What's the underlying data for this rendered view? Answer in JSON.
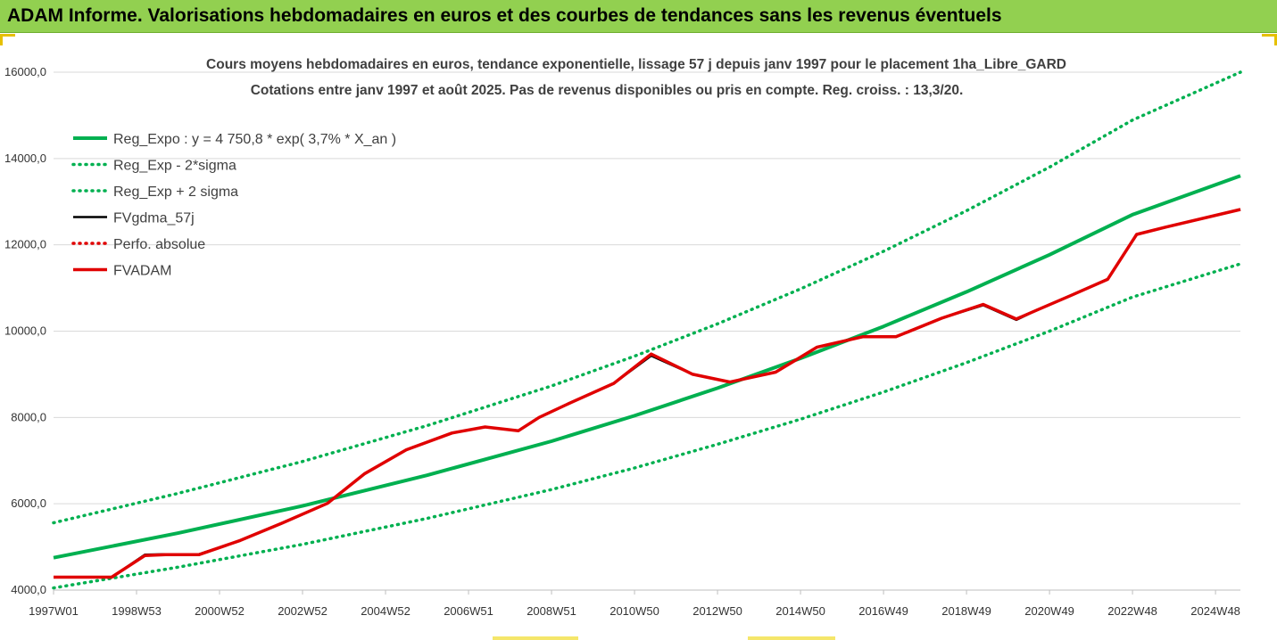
{
  "banner": {
    "title": "ADAM Informe. Valorisations hebdomadaires en euros et des courbes de tendances sans les revenus éventuels"
  },
  "colors": {
    "banner_bg": "#92d050",
    "reg_expo": "#00b050",
    "reg_bands": "#00b050",
    "fvgdma": "#000000",
    "perfo": "#e00000",
    "fvadam": "#e00000"
  },
  "chart_data": {
    "type": "line",
    "title_line1": "Cours moyens hebdomadaires en euros, tendance exponentielle, lissage 57 j depuis janv 1997  pour le placement 1ha_Libre_GARD",
    "title_line2": "Cotations entre janv 1997 et août 2025. Pas de revenus disponibles ou pris en compte. Reg. croiss. : 13,3/20.",
    "x_ticks": [
      "1997W01",
      "1998W53",
      "2000W52",
      "2002W52",
      "2004W52",
      "2006W51",
      "2008W51",
      "2010W50",
      "2012W50",
      "2014W50",
      "2016W49",
      "2018W49",
      "2020W49",
      "2022W48",
      "2024W48"
    ],
    "x_tick_years": [
      1997.0,
      1999.0,
      2001.0,
      2003.0,
      2005.0,
      2007.0,
      2009.0,
      2011.0,
      2013.0,
      2015.0,
      2017.0,
      2019.0,
      2021.0,
      2023.0,
      2025.0
    ],
    "x_range": [
      1997.0,
      2025.6
    ],
    "y_ticks": [
      "4000,0",
      "6000,0",
      "8000,0",
      "10000,0",
      "12000,0",
      "14000,0",
      "16000,0"
    ],
    "y_tick_values": [
      4000,
      6000,
      8000,
      10000,
      12000,
      14000,
      16000
    ],
    "ylim": [
      4000,
      16000
    ],
    "grid": "horizontal",
    "legend_position": "top-left",
    "series": [
      {
        "name": "Reg_Expo : y = 4 750,8 * exp( 3,7% *  X_an )",
        "style": "solid",
        "color": "#00b050",
        "x": [
          1997.0,
          2000.0,
          2003.0,
          2006.0,
          2009.0,
          2011.0,
          2013.0,
          2015.0,
          2017.0,
          2019.0,
          2021.0,
          2023.0,
          2025.6
        ],
        "y": [
          4750,
          5320,
          5950,
          6660,
          7450,
          8040,
          8680,
          9370,
          10110,
          10910,
          11770,
          12700,
          13600
        ]
      },
      {
        "name": "Reg_Exp - 2*sigma",
        "style": "dotted",
        "color": "#00b050",
        "x": [
          1997.0,
          2000.0,
          2003.0,
          2006.0,
          2009.0,
          2011.0,
          2013.0,
          2015.0,
          2017.0,
          2019.0,
          2021.0,
          2023.0,
          2025.6
        ],
        "y": [
          4050,
          4530,
          5060,
          5660,
          6330,
          6830,
          7380,
          7960,
          8590,
          9270,
          10000,
          10790,
          11560
        ]
      },
      {
        "name": "Reg_Exp + 2 sigma",
        "style": "dotted",
        "color": "#00b050",
        "x": [
          1997.0,
          2000.0,
          2003.0,
          2006.0,
          2009.0,
          2011.0,
          2013.0,
          2015.0,
          2017.0,
          2019.0,
          2021.0,
          2023.0,
          2025.6
        ],
        "y": [
          5560,
          6240,
          6980,
          7810,
          8730,
          9420,
          10170,
          10980,
          11850,
          12790,
          13800,
          14890,
          16000
        ]
      },
      {
        "name": "FVgdma_57j",
        "style": "solid",
        "color": "#000000",
        "x": [
          1997.0,
          1998.4,
          1999.2,
          1999.7,
          2000.5,
          2001.5,
          2002.5,
          2003.6,
          2004.5,
          2005.5,
          2006.6,
          2007.4,
          2008.2,
          2008.7,
          2009.5,
          2010.5,
          2011.4,
          2012.4,
          2013.3,
          2014.4,
          2015.4,
          2016.5,
          2017.3,
          2018.4,
          2019.4,
          2020.2,
          2020.7,
          2021.5,
          2022.4,
          2023.1,
          2023.8,
          2025.6
        ],
        "y": [
          4300,
          4300,
          4820,
          4830,
          4830,
          5150,
          5550,
          6010,
          6700,
          7250,
          7640,
          7780,
          7690,
          8000,
          8360,
          8790,
          9430,
          9000,
          8820,
          9050,
          9630,
          9870,
          9870,
          10300,
          10600,
          10260,
          10490,
          10820,
          11200,
          12240,
          12410,
          12820
        ]
      },
      {
        "name": "Perfo. absolue",
        "style": "dotted",
        "color": "#e00000",
        "x": [],
        "y": []
      },
      {
        "name": "FVADAM",
        "style": "solid",
        "color": "#e00000",
        "x": [
          1997.0,
          1998.4,
          1999.2,
          1999.7,
          2000.5,
          2001.5,
          2002.5,
          2003.6,
          2004.5,
          2005.5,
          2006.6,
          2007.4,
          2008.2,
          2008.7,
          2009.5,
          2010.5,
          2011.4,
          2012.4,
          2013.3,
          2014.4,
          2015.4,
          2016.5,
          2017.3,
          2018.4,
          2019.4,
          2020.2,
          2020.7,
          2021.5,
          2022.4,
          2023.1,
          2023.8,
          2025.6
        ],
        "y": [
          4300,
          4300,
          4800,
          4820,
          4820,
          5150,
          5550,
          6010,
          6700,
          7250,
          7640,
          7780,
          7690,
          8000,
          8360,
          8790,
          9470,
          9000,
          8820,
          9050,
          9630,
          9870,
          9870,
          10300,
          10620,
          10280,
          10490,
          10820,
          11200,
          12240,
          12410,
          12820
        ]
      }
    ]
  }
}
